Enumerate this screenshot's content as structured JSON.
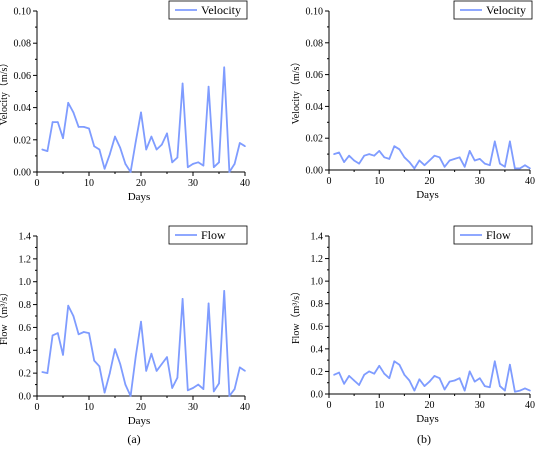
{
  "colors": {
    "series": "#7f9cff",
    "axis": "#000000"
  },
  "panel_labels": {
    "a": "(a)",
    "b": "(b)"
  },
  "chart_data": [
    {
      "id": "a-velocity",
      "type": "line",
      "xlabel": "Days",
      "ylabel": "Velocity（m/s）",
      "xlim": [
        0,
        40
      ],
      "ylim": [
        0,
        0.1
      ],
      "xticks": [
        0,
        10,
        20,
        30,
        40
      ],
      "yticks": [
        0.0,
        0.02,
        0.04,
        0.06,
        0.08,
        0.1
      ],
      "ytick_labels": [
        "0.00",
        "0.02",
        "0.04",
        "0.06",
        "0.08",
        "0.10"
      ],
      "legend": "top-right",
      "grid": false,
      "series": [
        {
          "name": "Velocity",
          "x": [
            1,
            2,
            3,
            4,
            5,
            6,
            7,
            8,
            9,
            10,
            11,
            12,
            13,
            14,
            15,
            16,
            17,
            18,
            19,
            20,
            21,
            22,
            23,
            24,
            25,
            26,
            27,
            28,
            29,
            30,
            31,
            32,
            33,
            34,
            35,
            36,
            37,
            38,
            39,
            40
          ],
          "y": [
            0.014,
            0.013,
            0.031,
            0.031,
            0.021,
            0.043,
            0.037,
            0.028,
            0.028,
            0.027,
            0.016,
            0.014,
            0.002,
            0.011,
            0.022,
            0.015,
            0.005,
            0.0,
            0.019,
            0.037,
            0.014,
            0.022,
            0.014,
            0.017,
            0.024,
            0.006,
            0.009,
            0.055,
            0.003,
            0.005,
            0.006,
            0.004,
            0.053,
            0.003,
            0.006,
            0.065,
            0.0,
            0.005,
            0.018,
            0.016
          ]
        }
      ]
    },
    {
      "id": "b-velocity",
      "type": "line",
      "xlabel": "Days",
      "ylabel": "Velocity（m/s）",
      "xlim": [
        0,
        40
      ],
      "ylim": [
        0,
        0.1
      ],
      "xticks": [
        0,
        10,
        20,
        30,
        40
      ],
      "yticks": [
        0.0,
        0.02,
        0.04,
        0.06,
        0.08,
        0.1
      ],
      "ytick_labels": [
        "0.00",
        "0.02",
        "0.04",
        "0.06",
        "0.08",
        "0.10"
      ],
      "legend": "top-right",
      "grid": false,
      "series": [
        {
          "name": "Velocity",
          "x": [
            1,
            2,
            3,
            4,
            5,
            6,
            7,
            8,
            9,
            10,
            11,
            12,
            13,
            14,
            15,
            16,
            17,
            18,
            19,
            20,
            21,
            22,
            23,
            24,
            25,
            26,
            27,
            28,
            29,
            30,
            31,
            32,
            33,
            34,
            35,
            36,
            37,
            38,
            39,
            40
          ],
          "y": [
            0.01,
            0.011,
            0.005,
            0.009,
            0.006,
            0.004,
            0.009,
            0.01,
            0.009,
            0.012,
            0.008,
            0.007,
            0.015,
            0.013,
            0.008,
            0.005,
            0.001,
            0.006,
            0.003,
            0.006,
            0.009,
            0.008,
            0.002,
            0.006,
            0.007,
            0.008,
            0.002,
            0.012,
            0.006,
            0.007,
            0.004,
            0.003,
            0.018,
            0.004,
            0.002,
            0.018,
            0.001,
            0.001,
            0.003,
            0.001
          ]
        }
      ]
    },
    {
      "id": "a-flow",
      "type": "line",
      "xlabel": "Days",
      "ylabel": "Flow（m³/s）",
      "xlim": [
        0,
        40
      ],
      "ylim": [
        0,
        1.4
      ],
      "xticks": [
        0,
        10,
        20,
        30,
        40
      ],
      "yticks": [
        0.0,
        0.2,
        0.4,
        0.6,
        0.8,
        1.0,
        1.2,
        1.4
      ],
      "ytick_labels": [
        "0.0",
        "0.2",
        "0.4",
        "0.6",
        "0.8",
        "1.0",
        "1.2",
        "1.4"
      ],
      "legend": "top-right",
      "grid": false,
      "series": [
        {
          "name": "Flow",
          "x": [
            1,
            2,
            3,
            4,
            5,
            6,
            7,
            8,
            9,
            10,
            11,
            12,
            13,
            14,
            15,
            16,
            17,
            18,
            19,
            20,
            21,
            22,
            23,
            24,
            25,
            26,
            27,
            28,
            29,
            30,
            31,
            32,
            33,
            34,
            35,
            36,
            37,
            38,
            39,
            40
          ],
          "y": [
            0.21,
            0.2,
            0.53,
            0.55,
            0.36,
            0.79,
            0.7,
            0.54,
            0.56,
            0.55,
            0.31,
            0.26,
            0.03,
            0.2,
            0.41,
            0.28,
            0.1,
            0.0,
            0.35,
            0.65,
            0.22,
            0.37,
            0.22,
            0.28,
            0.34,
            0.07,
            0.16,
            0.85,
            0.05,
            0.07,
            0.1,
            0.06,
            0.81,
            0.04,
            0.11,
            0.92,
            0.0,
            0.06,
            0.25,
            0.22
          ]
        }
      ]
    },
    {
      "id": "b-flow",
      "type": "line",
      "xlabel": "Days",
      "ylabel": "Flow（m³/s）",
      "xlim": [
        0,
        40
      ],
      "ylim": [
        0,
        1.4
      ],
      "xticks": [
        0,
        10,
        20,
        30,
        40
      ],
      "yticks": [
        0.0,
        0.2,
        0.4,
        0.6,
        0.8,
        1.0,
        1.2,
        1.4
      ],
      "ytick_labels": [
        "0.0",
        "0.2",
        "0.4",
        "0.6",
        "0.8",
        "1.0",
        "1.2",
        "1.4"
      ],
      "legend": "top-right",
      "grid": false,
      "series": [
        {
          "name": "Flow",
          "x": [
            1,
            2,
            3,
            4,
            5,
            6,
            7,
            8,
            9,
            10,
            11,
            12,
            13,
            14,
            15,
            16,
            17,
            18,
            19,
            20,
            21,
            22,
            23,
            24,
            25,
            26,
            27,
            28,
            29,
            30,
            31,
            32,
            33,
            34,
            35,
            36,
            37,
            38,
            39,
            40
          ],
          "y": [
            0.17,
            0.19,
            0.09,
            0.16,
            0.12,
            0.08,
            0.17,
            0.2,
            0.18,
            0.25,
            0.18,
            0.14,
            0.29,
            0.26,
            0.17,
            0.12,
            0.03,
            0.13,
            0.07,
            0.11,
            0.16,
            0.14,
            0.04,
            0.11,
            0.12,
            0.14,
            0.03,
            0.2,
            0.11,
            0.14,
            0.07,
            0.06,
            0.29,
            0.07,
            0.03,
            0.26,
            0.02,
            0.03,
            0.05,
            0.03
          ]
        }
      ]
    }
  ]
}
